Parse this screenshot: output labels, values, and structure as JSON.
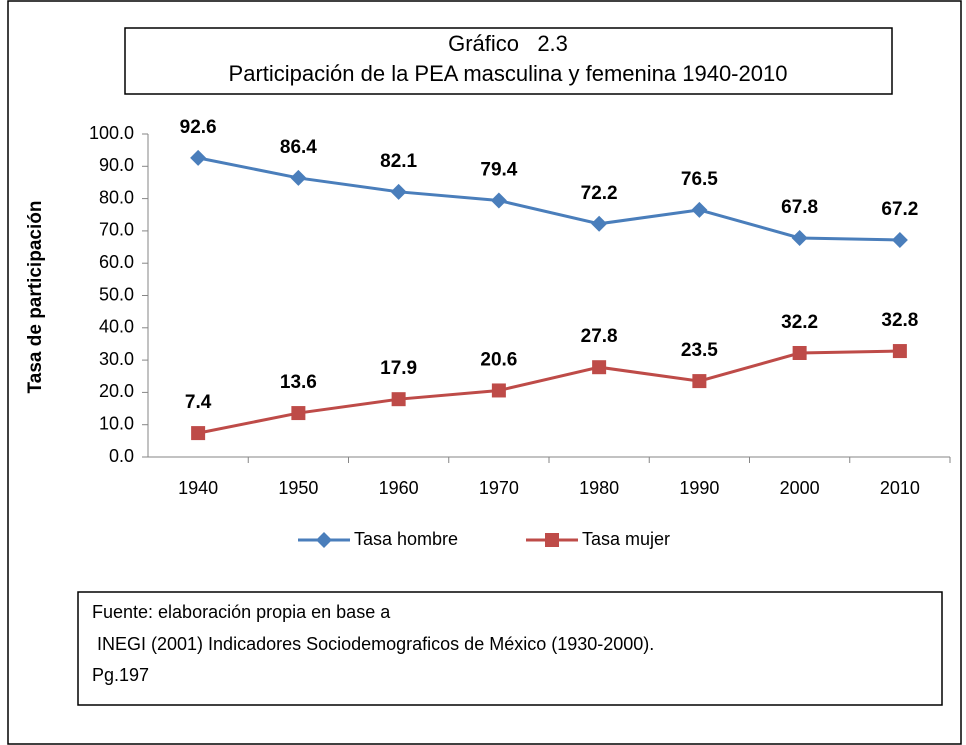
{
  "chart_data": {
    "type": "line",
    "title": "Gráfico   2.3",
    "subtitle": "Participación de la PEA masculina y femenina 1940-2010",
    "y_label": "Tasa de participación",
    "categories": [
      "1940",
      "1950",
      "1960",
      "1970",
      "1980",
      "1990",
      "2000",
      "2010"
    ],
    "series": [
      {
        "name": "Tasa hombre",
        "color": "#4a7ebb",
        "marker": "diamond",
        "values": [
          92.6,
          86.4,
          82.1,
          79.4,
          72.2,
          76.5,
          67.8,
          67.2
        ]
      },
      {
        "name": "Tasa mujer",
        "color": "#be4b48",
        "marker": "square",
        "values": [
          7.4,
          13.6,
          17.9,
          20.6,
          27.8,
          23.5,
          32.2,
          32.8
        ]
      }
    ],
    "ylim": [
      0,
      100
    ],
    "yticks": [
      {
        "value": 0,
        "label": "0.0"
      },
      {
        "value": 10,
        "label": "10.0"
      },
      {
        "value": 20,
        "label": "20.0"
      },
      {
        "value": 30,
        "label": "30.0"
      },
      {
        "value": 40,
        "label": "40.0"
      },
      {
        "value": 50,
        "label": "50.0"
      },
      {
        "value": 60,
        "label": "60.0"
      },
      {
        "value": 70,
        "label": "70.0"
      },
      {
        "value": 80,
        "label": "80.0"
      },
      {
        "value": 90,
        "label": "90.0"
      },
      {
        "value": 100,
        "label": "100.0"
      }
    ],
    "grid": false,
    "legend": "bottom",
    "note": [
      "Fuente: elaboración propia en base a",
      " INEGI (2001) Indicadores Sociodemograficos de México (1930-2000).",
      "Pg.197"
    ]
  }
}
